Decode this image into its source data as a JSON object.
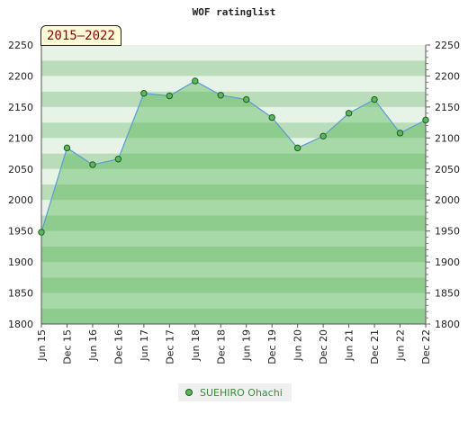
{
  "chart_data": {
    "type": "area",
    "title": "WOF ratinglist",
    "period_label": "2015–2022",
    "x": [
      "Jun 15",
      "Dec 15",
      "Jun 16",
      "Dec 16",
      "Jun 17",
      "Dec 17",
      "Jun 18",
      "Dec 18",
      "Jun 19",
      "Dec 19",
      "Jun 20",
      "Dec 20",
      "Jun 21",
      "Dec 21",
      "Jun 22",
      "Dec 22"
    ],
    "series": [
      {
        "name": "SUEHIRO Ohachi",
        "values": [
          1948,
          2084,
          2057,
          2066,
          2172,
          2168,
          2192,
          2169,
          2162,
          2133,
          2084,
          2103,
          2140,
          2162,
          2108,
          2129
        ]
      }
    ],
    "ylim": [
      1800,
      2250
    ],
    "yticks": [
      "1800",
      "1850",
      "1900",
      "1950",
      "2000",
      "2050",
      "2100",
      "2150",
      "2200",
      "2250"
    ],
    "grid": true,
    "legend_position": "bottom",
    "colors": {
      "line": "#5b9bd5",
      "fill": "#5cb85c",
      "marker_fill": "#5cb85c",
      "marker_stroke": "#1e5b1e",
      "band_light": "#e6f3e6",
      "band_dark": "#b9ddb9",
      "legend_text": "#3a8a3a"
    }
  }
}
